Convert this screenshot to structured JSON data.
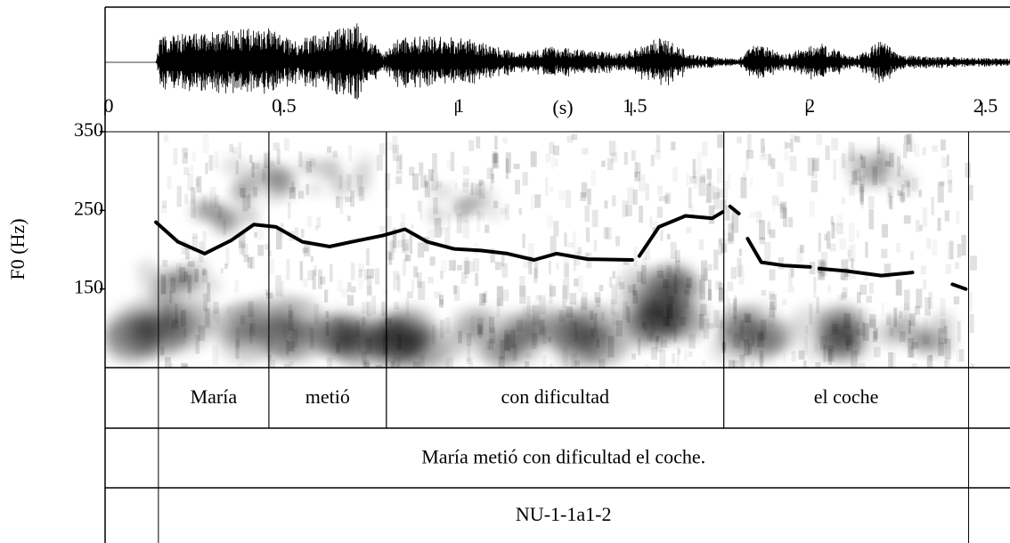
{
  "chart_data": {
    "type": "pitch",
    "x_label": "(s)",
    "y_label": "F0 (Hz)",
    "xlim": [
      0,
      2.58
    ],
    "xticks": [
      0,
      0.5,
      1,
      1.5,
      2,
      2.5
    ],
    "ylim": [
      50,
      350
    ],
    "yticks": [
      150,
      250,
      350
    ],
    "color": "#000000",
    "x": [
      0.145,
      0.208,
      0.284,
      0.36,
      0.424,
      0.487,
      0.563,
      0.64,
      0.703,
      0.792,
      0.855,
      0.919,
      0.995,
      1.071,
      1.147,
      1.223,
      1.287,
      1.376,
      1.503,
      null,
      1.523,
      1.579,
      1.655,
      1.731,
      1.761,
      null,
      1.782,
      1.807,
      null,
      1.832,
      1.871,
      1.934,
      2.01,
      null,
      2.036,
      2.112,
      2.213,
      2.302,
      null,
      2.416,
      2.454
    ],
    "values": [
      235,
      210,
      195,
      212,
      232,
      229,
      210,
      204,
      210,
      218,
      226,
      210,
      201,
      199,
      195,
      187,
      195,
      188,
      187,
      null,
      192,
      229,
      243,
      240,
      248,
      null,
      255,
      246,
      null,
      214,
      184,
      180,
      178,
      null,
      176,
      173,
      167,
      171,
      null,
      156,
      150
    ],
    "tiers": [
      {
        "intervals": [
          {
            "start": 0.152,
            "end": 0.467,
            "label": "María"
          },
          {
            "start": 0.467,
            "end": 0.802,
            "label": "metió"
          },
          {
            "start": 0.802,
            "end": 1.764,
            "label": "con dificultad"
          },
          {
            "start": 1.764,
            "end": 2.462,
            "label": "el coche"
          }
        ]
      },
      {
        "intervals": [
          {
            "start": 0.152,
            "end": 2.462,
            "label": "María metió con dificultad el coche."
          }
        ]
      },
      {
        "intervals": [
          {
            "start": 0.152,
            "end": 2.462,
            "label": "NU-1-1a1-2"
          }
        ]
      }
    ]
  }
}
